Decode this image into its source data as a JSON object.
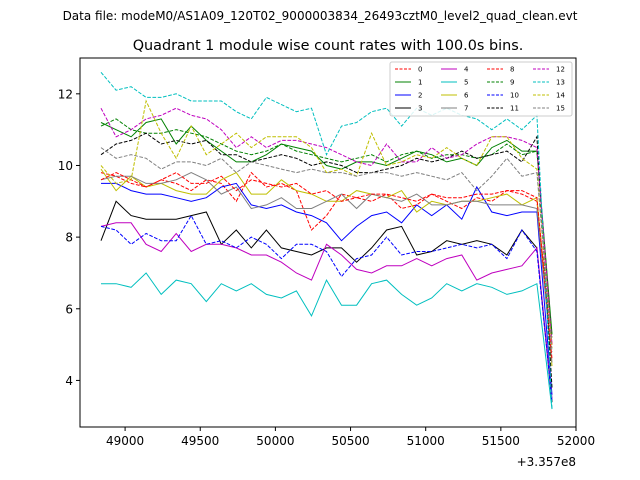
{
  "header": {
    "datafile": "Data file: modeM0/AS1A09_120T02_9000003834_26493cztM0_level2_quad_clean.evt"
  },
  "chart_data": {
    "type": "line",
    "title": "Quadrant 1 module wise count rates with 100.0s bins.",
    "xlabel": "",
    "ylabel": "",
    "x_offset_label": "+3.357e8",
    "xlim": [
      48700,
      52000
    ],
    "ylim": [
      2.7,
      13.0
    ],
    "xticks": [
      49000,
      49500,
      50000,
      50500,
      51000,
      51500,
      52000
    ],
    "xtick_labels": [
      "49000",
      "49500",
      "50000",
      "50500",
      "51000",
      "51500",
      "52000"
    ],
    "yticks": [
      4,
      6,
      8,
      10,
      12
    ],
    "ytick_labels": [
      "4",
      "6",
      "8",
      "10",
      "12"
    ],
    "legend_position": "top-right",
    "x": [
      48840,
      48940,
      49040,
      49140,
      49240,
      49340,
      49440,
      49540,
      49640,
      49740,
      49840,
      49940,
      50040,
      50140,
      50240,
      50340,
      50440,
      50540,
      50640,
      50740,
      50840,
      50940,
      51040,
      51140,
      51240,
      51340,
      51440,
      51540,
      51640,
      51740,
      51840
    ],
    "series": [
      {
        "name": "0",
        "color": "#ff0000",
        "dash": "dashed",
        "values": [
          9.8,
          9.7,
          9.5,
          9.4,
          9.6,
          9.5,
          9.3,
          9.6,
          9.5,
          9.0,
          9.8,
          9.4,
          9.5,
          9.3,
          8.2,
          8.6,
          9.2,
          9.1,
          9.0,
          9.2,
          8.8,
          8.9,
          9.2,
          9.0,
          8.8,
          9.1,
          9.0,
          9.3,
          9.2,
          9.0,
          5.0
        ]
      },
      {
        "name": "1",
        "color": "#008000",
        "dash": "solid",
        "values": [
          11.2,
          11.0,
          10.8,
          11.2,
          11.3,
          10.6,
          11.1,
          10.7,
          10.4,
          10.1,
          10.1,
          10.3,
          10.6,
          10.5,
          10.4,
          10.0,
          9.9,
          10.1,
          10.1,
          10.0,
          10.2,
          10.4,
          10.3,
          10.1,
          10.2,
          10.0,
          10.5,
          10.7,
          10.4,
          10.4,
          5.3
        ]
      },
      {
        "name": "2",
        "color": "#0000ff",
        "dash": "solid",
        "values": [
          9.5,
          9.5,
          9.3,
          9.2,
          9.2,
          9.1,
          9.0,
          9.1,
          9.4,
          9.5,
          8.9,
          8.8,
          8.9,
          8.7,
          8.6,
          8.4,
          7.9,
          8.3,
          8.6,
          8.7,
          8.4,
          8.9,
          8.6,
          8.9,
          8.5,
          9.4,
          8.7,
          8.6,
          8.7,
          8.7,
          3.6
        ]
      },
      {
        "name": "3",
        "color": "#000000",
        "dash": "solid",
        "values": [
          7.9,
          9.0,
          8.6,
          8.5,
          8.5,
          8.5,
          8.6,
          8.7,
          7.8,
          8.2,
          7.7,
          8.2,
          7.7,
          7.6,
          7.5,
          7.7,
          7.7,
          7.3,
          7.7,
          8.2,
          8.3,
          7.5,
          7.6,
          7.9,
          7.8,
          7.9,
          7.8,
          7.5,
          8.2,
          7.7,
          3.4
        ]
      },
      {
        "name": "4",
        "color": "#bf00bf",
        "dash": "solid",
        "values": [
          8.3,
          8.4,
          8.4,
          7.8,
          7.6,
          8.1,
          7.6,
          7.8,
          7.8,
          7.7,
          7.5,
          7.5,
          7.3,
          7.0,
          6.8,
          7.8,
          7.5,
          7.1,
          7.0,
          7.2,
          7.2,
          7.4,
          7.2,
          7.4,
          7.5,
          6.8,
          7.0,
          7.1,
          7.2,
          7.7,
          3.5
        ]
      },
      {
        "name": "5",
        "color": "#00bfbf",
        "dash": "solid",
        "values": [
          6.7,
          6.7,
          6.6,
          7.0,
          6.4,
          6.8,
          6.7,
          6.2,
          6.7,
          6.5,
          6.7,
          6.4,
          6.3,
          6.5,
          5.8,
          6.8,
          6.1,
          6.1,
          6.7,
          6.8,
          6.4,
          6.1,
          6.3,
          6.7,
          6.5,
          6.7,
          6.6,
          6.4,
          6.5,
          6.7,
          3.2
        ]
      },
      {
        "name": "6",
        "color": "#bfbf00",
        "dash": "solid",
        "values": [
          9.9,
          9.3,
          9.7,
          9.4,
          9.5,
          9.3,
          9.2,
          9.2,
          9.6,
          9.8,
          9.2,
          9.2,
          9.6,
          9.3,
          9.2,
          9.0,
          9.0,
          9.3,
          9.2,
          9.1,
          9.3,
          8.7,
          9.0,
          8.9,
          9.0,
          9.0,
          9.1,
          9.2,
          8.9,
          9.1,
          4.4
        ]
      },
      {
        "name": "7",
        "color": "#808080",
        "dash": "solid",
        "values": [
          9.6,
          9.7,
          9.7,
          9.5,
          9.5,
          9.6,
          9.8,
          9.6,
          9.2,
          9.4,
          8.8,
          8.9,
          9.1,
          8.8,
          8.8,
          9.0,
          9.2,
          8.8,
          9.2,
          9.1,
          9.0,
          9.2,
          8.9,
          8.9,
          9.0,
          9.0,
          8.9,
          8.9,
          8.9,
          8.8,
          4.5
        ]
      },
      {
        "name": "8",
        "color": "#ff0000",
        "dash": "dashed",
        "values": [
          9.6,
          9.8,
          9.6,
          9.4,
          9.6,
          9.8,
          9.5,
          9.5,
          9.7,
          9.3,
          9.6,
          9.5,
          9.4,
          9.5,
          9.2,
          9.3,
          9.0,
          9.1,
          9.2,
          9.2,
          9.1,
          9.0,
          9.2,
          9.1,
          9.1,
          9.2,
          9.2,
          9.3,
          9.3,
          9.1,
          4.6
        ]
      },
      {
        "name": "9",
        "color": "#008000",
        "dash": "dashed",
        "values": [
          11.1,
          11.3,
          11.0,
          10.9,
          10.9,
          11.0,
          10.9,
          10.8,
          10.6,
          10.4,
          10.3,
          10.4,
          10.6,
          10.4,
          10.3,
          10.2,
          10.1,
          10.2,
          10.3,
          10.1,
          10.3,
          10.4,
          10.2,
          10.3,
          10.3,
          10.2,
          10.3,
          10.6,
          10.3,
          10.4,
          5.2
        ]
      },
      {
        "name": "10",
        "color": "#0000ff",
        "dash": "dashed",
        "values": [
          8.3,
          8.2,
          7.8,
          8.1,
          7.9,
          7.9,
          8.6,
          7.8,
          7.9,
          7.7,
          8.0,
          7.8,
          7.4,
          7.8,
          7.8,
          7.6,
          6.9,
          7.4,
          7.5,
          8.0,
          7.5,
          7.6,
          7.6,
          7.7,
          7.8,
          7.7,
          7.8,
          7.4,
          8.2,
          7.6,
          3.4
        ]
      },
      {
        "name": "11",
        "color": "#000000",
        "dash": "dashed",
        "values": [
          10.3,
          10.6,
          10.7,
          10.9,
          10.6,
          10.7,
          10.6,
          10.7,
          10.3,
          10.3,
          10.1,
          10.2,
          10.3,
          10.2,
          10.0,
          10.1,
          10.0,
          9.8,
          9.8,
          9.9,
          10.0,
          10.2,
          10.1,
          10.2,
          10.4,
          10.2,
          10.3,
          10.4,
          10.1,
          10.8,
          3.8
        ]
      },
      {
        "name": "12",
        "color": "#bf00bf",
        "dash": "dashed",
        "values": [
          11.6,
          10.8,
          11.0,
          11.3,
          11.4,
          11.6,
          11.4,
          11.3,
          11.0,
          10.5,
          10.8,
          10.5,
          10.7,
          10.7,
          10.6,
          10.5,
          10.3,
          10.1,
          10.0,
          10.6,
          10.1,
          10.1,
          10.5,
          10.2,
          10.3,
          10.6,
          10.8,
          10.8,
          10.7,
          10.5,
          5.0
        ]
      },
      {
        "name": "13",
        "color": "#00bfbf",
        "dash": "dashed",
        "values": [
          12.6,
          12.1,
          12.2,
          11.9,
          11.9,
          12.0,
          11.8,
          11.8,
          11.8,
          11.5,
          11.3,
          11.9,
          11.7,
          11.5,
          11.6,
          10.3,
          11.1,
          11.2,
          11.5,
          11.6,
          11.1,
          11.6,
          11.4,
          11.6,
          11.4,
          11.3,
          11.0,
          11.3,
          11.0,
          11.4,
          3.2
        ]
      },
      {
        "name": "14",
        "color": "#bfbf00",
        "dash": "dashed",
        "values": [
          10.0,
          9.5,
          9.6,
          11.8,
          10.9,
          10.2,
          11.1,
          10.3,
          10.6,
          10.9,
          10.5,
          10.8,
          10.8,
          10.8,
          10.5,
          9.8,
          9.9,
          9.7,
          10.9,
          10.0,
          10.1,
          10.3,
          10.2,
          10.5,
          10.2,
          10.0,
          10.8,
          10.8,
          10.2,
          9.9,
          4.9
        ]
      },
      {
        "name": "15",
        "color": "#808080",
        "dash": "dashed",
        "values": [
          10.5,
          10.2,
          10.3,
          10.2,
          9.9,
          10.1,
          10.1,
          10.0,
          10.2,
          9.8,
          10.1,
          10.0,
          9.9,
          9.8,
          9.9,
          9.8,
          9.8,
          9.7,
          9.8,
          9.8,
          9.7,
          9.8,
          9.7,
          9.6,
          9.8,
          9.3,
          9.7,
          10.2,
          9.7,
          9.8,
          4.8
        ]
      }
    ]
  }
}
